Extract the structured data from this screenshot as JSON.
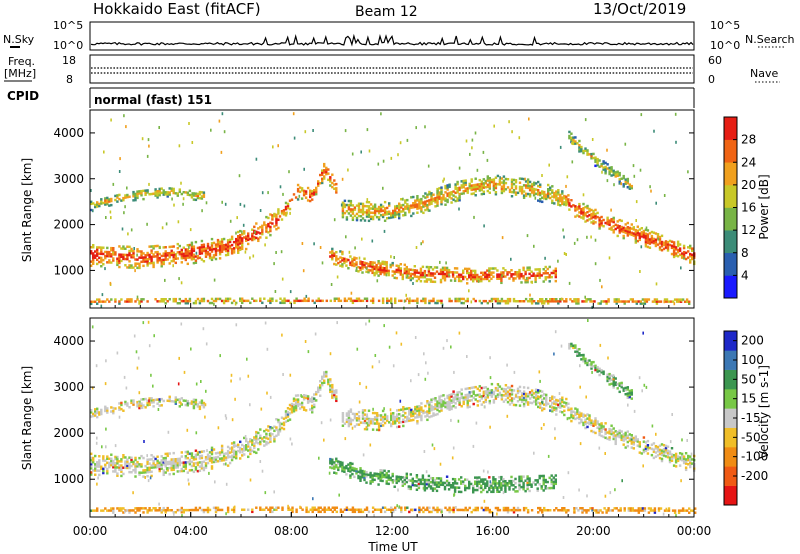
{
  "header": {
    "title": "Hokkaido East (fitACF)",
    "beam": "Beam 12",
    "date": "13/Oct/2019"
  },
  "strips": {
    "nsky_label": "N.Sky",
    "nsky_ticks": [
      "10^5",
      "10^0"
    ],
    "nsearch_label": "N.Search",
    "nsearch_ticks": [
      "10^5",
      "10^0"
    ],
    "freq_label": "Freq.",
    "freq_unit": "[MHz]",
    "freq_ticks": [
      "18",
      "8"
    ],
    "nave_label": "Nave",
    "nave_ticks": [
      "60",
      "0"
    ],
    "cpid_label": "CPID",
    "cpid_value": "normal (fast) 151"
  },
  "chart_data": [
    {
      "type": "heatmap",
      "name": "power",
      "xlabel": "",
      "ylabel": "Slant Range [km]",
      "xlim": [
        0,
        24
      ],
      "ylim": [
        180,
        4500
      ],
      "yticks": [
        1000,
        2000,
        3000,
        4000
      ],
      "colorbar_label": "Power [dB]",
      "colorbar_ticks": [
        "4",
        "8",
        "12",
        "16",
        "20",
        "24",
        "28"
      ],
      "colorbar_colors": [
        "#1a1aff",
        "#2a5fb0",
        "#3c8c78",
        "#78b446",
        "#c8c828",
        "#f0a01e",
        "#f06414",
        "#e61e14"
      ],
      "bands": [
        {
          "x": [
            0,
            2,
            4,
            5.5,
            6.5,
            7.5
          ],
          "y": [
            1300,
            1250,
            1350,
            1500,
            1750,
            2100
          ],
          "width": 450,
          "level": 0.92
        },
        {
          "x": [
            7.5,
            8.2,
            8.8,
            9.3,
            9.8
          ],
          "y": [
            2100,
            2700,
            2600,
            3200,
            2700
          ],
          "width": 350,
          "level": 0.85
        },
        {
          "x": [
            9.5,
            11,
            13,
            15,
            17,
            18.5
          ],
          "y": [
            1300,
            1050,
            900,
            850,
            870,
            900
          ],
          "width": 320,
          "level": 0.88
        },
        {
          "x": [
            10,
            11.5,
            13,
            14.5,
            16,
            17.5,
            19
          ],
          "y": [
            2300,
            2250,
            2400,
            2700,
            2850,
            2750,
            2500
          ],
          "width": 420,
          "level": 0.72
        },
        {
          "x": [
            19,
            20.5,
            22,
            23.2,
            24
          ],
          "y": [
            2400,
            2000,
            1700,
            1450,
            1300
          ],
          "width": 380,
          "level": 0.9
        },
        {
          "x": [
            0,
            1.5,
            3,
            4.5
          ],
          "y": [
            2400,
            2600,
            2700,
            2600
          ],
          "width": 220,
          "level": 0.66
        },
        {
          "x": [
            19,
            20,
            21.5
          ],
          "y": [
            3900,
            3400,
            2800
          ],
          "width": 260,
          "level": 0.6
        },
        {
          "x": [
            0,
            6,
            12,
            18,
            24
          ],
          "y": [
            300,
            320,
            320,
            310,
            300
          ],
          "width": 110,
          "level": 0.8
        }
      ]
    },
    {
      "type": "heatmap",
      "name": "velocity",
      "xlabel": "Time UT",
      "ylabel": "Slant Range [km]",
      "xlim": [
        0,
        24
      ],
      "ylim": [
        180,
        4500
      ],
      "xticks": [
        "00:00",
        "04:00",
        "08:00",
        "12:00",
        "16:00",
        "20:00",
        "00:00"
      ],
      "yticks": [
        1000,
        2000,
        3000,
        4000
      ],
      "colorbar_label": "Velocity [m s-1]",
      "colorbar_ticks": [
        "200",
        "100",
        "50",
        "15",
        "-15",
        "-50",
        "-100",
        "-200"
      ],
      "colorbar_colors": [
        "#1e28c8",
        "#3c78b4",
        "#3c9650",
        "#78c846",
        "#c8c8c8",
        "#f0be28",
        "#f08c14",
        "#f05a14",
        "#e61414"
      ],
      "bands": [
        {
          "x": [
            0,
            2,
            4,
            5.5,
            6.5,
            7.5
          ],
          "y": [
            1300,
            1250,
            1350,
            1500,
            1750,
            2100
          ],
          "width": 450,
          "vel": 0
        },
        {
          "x": [
            7.5,
            8.2,
            8.8,
            9.3,
            9.8
          ],
          "y": [
            2100,
            2700,
            2600,
            3200,
            2700
          ],
          "width": 350,
          "vel": 0
        },
        {
          "x": [
            9.5,
            11,
            13,
            15,
            17,
            18.5
          ],
          "y": [
            1300,
            1050,
            900,
            850,
            870,
            900
          ],
          "width": 320,
          "vel": 40
        },
        {
          "x": [
            10,
            11.5,
            13,
            14.5,
            16,
            17.5,
            19
          ],
          "y": [
            2300,
            2250,
            2400,
            2700,
            2850,
            2750,
            2500
          ],
          "width": 420,
          "vel": 0
        },
        {
          "x": [
            19,
            20.5,
            22,
            23.2,
            24
          ],
          "y": [
            2400,
            2000,
            1700,
            1450,
            1300
          ],
          "width": 380,
          "vel": 0
        },
        {
          "x": [
            0,
            1.5,
            3,
            4.5
          ],
          "y": [
            2400,
            2600,
            2700,
            2600
          ],
          "width": 220,
          "vel": 0
        },
        {
          "x": [
            19,
            20,
            21.5
          ],
          "y": [
            3900,
            3400,
            2800
          ],
          "width": 260,
          "vel": 30
        },
        {
          "x": [
            0,
            6,
            12,
            18,
            24
          ],
          "y": [
            300,
            320,
            320,
            310,
            300
          ],
          "width": 110,
          "vel": -40
        }
      ]
    }
  ]
}
